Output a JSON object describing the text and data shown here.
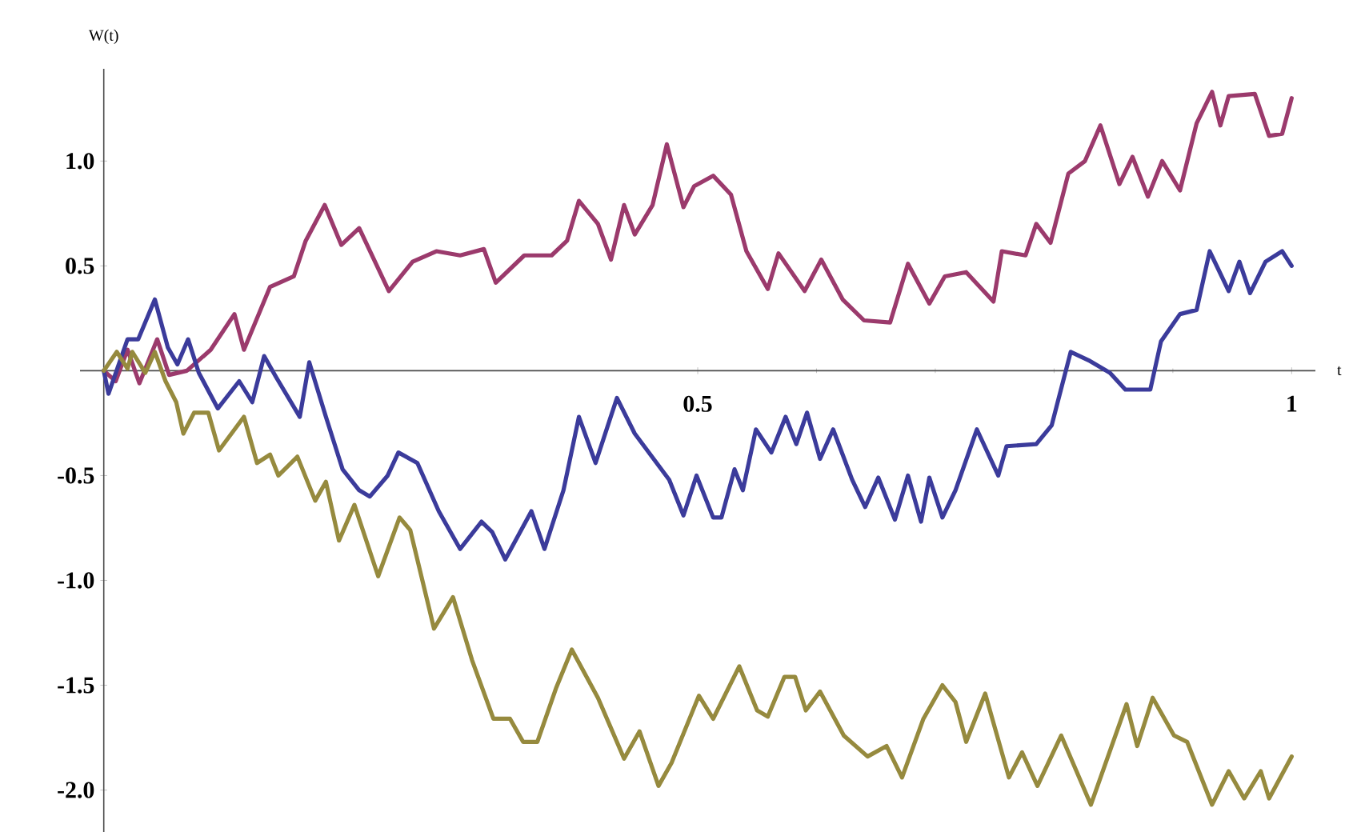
{
  "chart_data": {
    "type": "line",
    "xlabel": "t",
    "ylabel": "W(t)",
    "xlim": [
      -0.02,
      1.02
    ],
    "ylim": [
      -2.2,
      1.44
    ],
    "xticks": [
      0.5,
      1
    ],
    "yticks": [
      {
        "value": -2,
        "label": "-2.0"
      },
      {
        "value": -1.5,
        "label": "-1.5"
      },
      {
        "value": -1,
        "label": "-1.0"
      },
      {
        "value": -0.5,
        "label": "-0.5"
      },
      {
        "value": 0.5,
        "label": "0.5"
      },
      {
        "value": 1,
        "label": "1.0"
      }
    ],
    "grid": false,
    "marker": "none",
    "line_style": "solid",
    "series": [
      {
        "color": "#9b3a6c",
        "x": [
          0,
          0.01,
          0.02,
          0.03,
          0.045,
          0.055,
          0.07,
          0.09,
          0.11,
          0.118,
          0.14,
          0.16,
          0.17,
          0.186,
          0.2,
          0.215,
          0.24,
          0.26,
          0.28,
          0.3,
          0.32,
          0.33,
          0.354,
          0.377,
          0.39,
          0.4,
          0.416,
          0.427,
          0.438,
          0.447,
          0.462,
          0.474,
          0.488,
          0.497,
          0.513,
          0.528,
          0.541,
          0.559,
          0.568,
          0.59,
          0.604,
          0.622,
          0.64,
          0.662,
          0.677,
          0.695,
          0.708,
          0.726,
          0.749,
          0.756,
          0.776,
          0.785,
          0.797,
          0.812,
          0.826,
          0.839,
          0.855,
          0.866,
          0.879,
          0.891,
          0.906,
          0.92,
          0.933,
          0.94,
          0.947,
          0.969,
          0.981,
          0.992,
          1.0
        ],
        "values": [
          0,
          -0.05,
          0.1,
          -0.06,
          0.15,
          -0.02,
          0.0,
          0.1,
          0.27,
          0.1,
          0.4,
          0.45,
          0.62,
          0.79,
          0.6,
          0.68,
          0.38,
          0.52,
          0.57,
          0.55,
          0.58,
          0.42,
          0.55,
          0.55,
          0.62,
          0.81,
          0.7,
          0.53,
          0.79,
          0.65,
          0.79,
          1.08,
          0.78,
          0.88,
          0.93,
          0.84,
          0.57,
          0.39,
          0.56,
          0.38,
          0.53,
          0.34,
          0.24,
          0.23,
          0.51,
          0.32,
          0.45,
          0.47,
          0.33,
          0.57,
          0.55,
          0.7,
          0.61,
          0.94,
          1.0,
          1.17,
          0.89,
          1.02,
          0.83,
          1.0,
          0.86,
          1.18,
          1.33,
          1.17,
          1.31,
          1.32,
          1.12,
          1.13,
          1.3
        ]
      },
      {
        "color": "#3b3b9b",
        "x": [
          0,
          0.004,
          0.02,
          0.029,
          0.043,
          0.054,
          0.062,
          0.071,
          0.08,
          0.096,
          0.114,
          0.125,
          0.135,
          0.145,
          0.165,
          0.173,
          0.187,
          0.201,
          0.215,
          0.224,
          0.239,
          0.248,
          0.264,
          0.282,
          0.3,
          0.318,
          0.327,
          0.338,
          0.36,
          0.371,
          0.387,
          0.4,
          0.414,
          0.432,
          0.447,
          0.476,
          0.488,
          0.499,
          0.513,
          0.52,
          0.531,
          0.538,
          0.549,
          0.562,
          0.574,
          0.583,
          0.592,
          0.603,
          0.614,
          0.63,
          0.641,
          0.652,
          0.666,
          0.677,
          0.688,
          0.695,
          0.706,
          0.717,
          0.735,
          0.753,
          0.76,
          0.785,
          0.798,
          0.814,
          0.829,
          0.847,
          0.86,
          0.881,
          0.89,
          0.906,
          0.92,
          0.931,
          0.947,
          0.956,
          0.965,
          0.978,
          0.992,
          1.0
        ],
        "values": [
          0,
          -0.11,
          0.15,
          0.15,
          0.34,
          0.11,
          0.03,
          0.15,
          -0.01,
          -0.18,
          -0.05,
          -0.15,
          0.07,
          -0.03,
          -0.22,
          0.04,
          -0.22,
          -0.47,
          -0.57,
          -0.6,
          -0.5,
          -0.39,
          -0.44,
          -0.67,
          -0.85,
          -0.72,
          -0.77,
          -0.9,
          -0.67,
          -0.85,
          -0.57,
          -0.22,
          -0.44,
          -0.13,
          -0.3,
          -0.52,
          -0.69,
          -0.5,
          -0.7,
          -0.7,
          -0.47,
          -0.57,
          -0.28,
          -0.39,
          -0.22,
          -0.35,
          -0.2,
          -0.42,
          -0.28,
          -0.52,
          -0.65,
          -0.51,
          -0.71,
          -0.5,
          -0.72,
          -0.51,
          -0.7,
          -0.57,
          -0.28,
          -0.5,
          -0.36,
          -0.35,
          -0.26,
          0.09,
          0.05,
          -0.01,
          -0.09,
          -0.09,
          0.14,
          0.27,
          0.29,
          0.57,
          0.38,
          0.52,
          0.37,
          0.52,
          0.57,
          0.5
        ]
      },
      {
        "color": "#968a3e",
        "x": [
          0,
          0.011,
          0.02,
          0.024,
          0.035,
          0.043,
          0.052,
          0.061,
          0.067,
          0.076,
          0.088,
          0.097,
          0.118,
          0.129,
          0.14,
          0.147,
          0.163,
          0.178,
          0.187,
          0.198,
          0.211,
          0.231,
          0.249,
          0.258,
          0.278,
          0.294,
          0.31,
          0.328,
          0.342,
          0.353,
          0.365,
          0.381,
          0.394,
          0.416,
          0.438,
          0.451,
          0.467,
          0.478,
          0.501,
          0.513,
          0.535,
          0.55,
          0.559,
          0.573,
          0.582,
          0.591,
          0.603,
          0.623,
          0.643,
          0.659,
          0.672,
          0.69,
          0.706,
          0.717,
          0.726,
          0.742,
          0.762,
          0.773,
          0.786,
          0.806,
          0.831,
          0.861,
          0.87,
          0.883,
          0.901,
          0.912,
          0.933,
          0.947,
          0.96,
          0.974,
          0.981,
          1.0
        ],
        "values": [
          0,
          0.09,
          0.01,
          0.09,
          -0.01,
          0.09,
          -0.05,
          -0.15,
          -0.3,
          -0.2,
          -0.2,
          -0.38,
          -0.22,
          -0.44,
          -0.4,
          -0.5,
          -0.41,
          -0.62,
          -0.53,
          -0.81,
          -0.64,
          -0.98,
          -0.7,
          -0.76,
          -1.23,
          -1.08,
          -1.38,
          -1.66,
          -1.66,
          -1.77,
          -1.77,
          -1.51,
          -1.33,
          -1.56,
          -1.85,
          -1.72,
          -1.98,
          -1.87,
          -1.55,
          -1.66,
          -1.41,
          -1.62,
          -1.65,
          -1.46,
          -1.46,
          -1.62,
          -1.53,
          -1.74,
          -1.84,
          -1.79,
          -1.94,
          -1.66,
          -1.5,
          -1.58,
          -1.77,
          -1.54,
          -1.94,
          -1.82,
          -1.98,
          -1.74,
          -2.07,
          -1.59,
          -1.79,
          -1.56,
          -1.74,
          -1.77,
          -2.07,
          -1.91,
          -2.04,
          -1.91,
          -2.04,
          -1.84
        ]
      }
    ]
  }
}
